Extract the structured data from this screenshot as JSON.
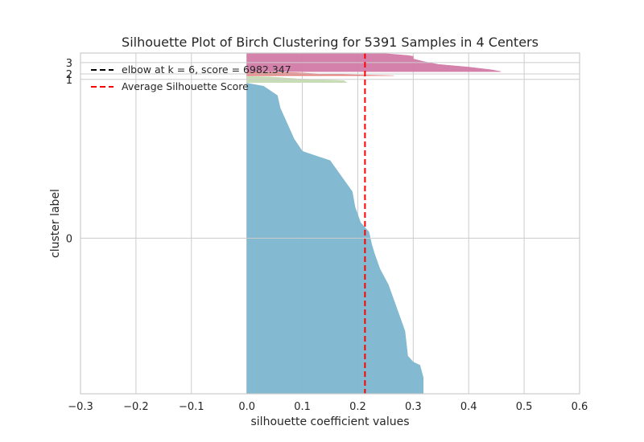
{
  "chart_data": {
    "type": "area",
    "title": "Silhouette Plot of Birch Clustering for 5391 Samples in 4 Centers",
    "xlabel": "silhouette coefficient values",
    "ylabel": "cluster label",
    "xlim": [
      -0.3,
      0.6
    ],
    "xticks": [
      -0.3,
      -0.2,
      -0.1,
      0.0,
      0.1,
      0.2,
      0.3,
      0.4,
      0.5,
      0.6
    ],
    "xtick_labels": [
      "−0.3",
      "−0.2",
      "−0.1",
      "0.0",
      "0.1",
      "0.2",
      "0.3",
      "0.4",
      "0.5",
      "0.6"
    ],
    "ytick_labels": [
      "0",
      "1",
      "2",
      "3"
    ],
    "grid": true,
    "legend": {
      "placement": "top-left",
      "entries": [
        {
          "label": "elbow at k = 6, score = 6982.347",
          "style": "dashed",
          "color": "#000000"
        },
        {
          "label": "Average Silhouette Score",
          "style": "dashed",
          "color": "#ff0000"
        }
      ]
    },
    "average_silhouette_score": 0.213,
    "clusters": [
      {
        "name": "0",
        "color": "#7db6cf",
        "sample_count": 4950,
        "profile": [
          [
            0.0,
            0.318
          ],
          [
            0.05,
            0.318
          ],
          [
            0.09,
            0.312
          ],
          [
            0.1,
            0.3
          ],
          [
            0.12,
            0.29
          ],
          [
            0.2,
            0.285
          ],
          [
            0.25,
            0.275
          ],
          [
            0.3,
            0.265
          ],
          [
            0.35,
            0.255
          ],
          [
            0.4,
            0.24
          ],
          [
            0.45,
            0.23
          ],
          [
            0.48,
            0.225
          ],
          [
            0.52,
            0.22
          ],
          [
            0.55,
            0.205
          ],
          [
            0.6,
            0.195
          ],
          [
            0.65,
            0.19
          ],
          [
            0.7,
            0.17
          ],
          [
            0.75,
            0.15
          ],
          [
            0.78,
            0.1
          ],
          [
            0.82,
            0.085
          ],
          [
            0.88,
            0.07
          ],
          [
            0.92,
            0.06
          ],
          [
            0.96,
            0.055
          ],
          [
            0.99,
            0.03
          ],
          [
            1.0,
            0.0
          ]
        ]
      },
      {
        "name": "1",
        "color": "#c5dbb2",
        "sample_count": 100,
        "profile": [
          [
            0.0,
            0.18
          ],
          [
            0.3,
            0.175
          ],
          [
            0.6,
            0.09
          ],
          [
            0.9,
            0.04
          ],
          [
            1.0,
            0.0
          ]
        ]
      },
      {
        "name": "2",
        "color": "#e67777",
        "sample_count": 55,
        "profile": [
          [
            0.0,
            0.265
          ],
          [
            0.3,
            0.17
          ],
          [
            0.6,
            0.12
          ],
          [
            0.85,
            0.09
          ],
          [
            1.0,
            0.0
          ]
        ]
      },
      {
        "name": "3",
        "color": "#d27ba8",
        "sample_count": 286,
        "profile": [
          [
            0.0,
            0.458
          ],
          [
            0.1,
            0.44
          ],
          [
            0.25,
            0.4
          ],
          [
            0.4,
            0.345
          ],
          [
            0.55,
            0.32
          ],
          [
            0.7,
            0.3
          ],
          [
            0.85,
            0.3
          ],
          [
            0.9,
            0.29
          ],
          [
            1.0,
            0.25
          ]
        ]
      }
    ]
  }
}
